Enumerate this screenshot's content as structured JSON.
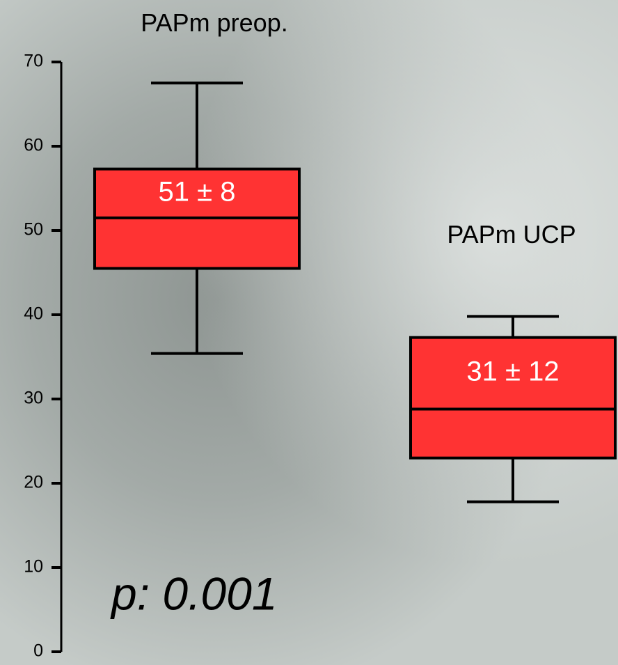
{
  "chart_data": {
    "type": "box",
    "categories": [
      "PAPm preop.",
      "PAPm UCP"
    ],
    "boxes": [
      {
        "whislo": 35.4,
        "q1": 45.5,
        "med": 51.5,
        "q3": 57.3,
        "whishi": 67.5,
        "label": "51 ± 8"
      },
      {
        "whislo": 17.8,
        "q1": 23,
        "med": 28.8,
        "q3": 37.3,
        "whishi": 39.8,
        "label": "31 ± 12"
      }
    ],
    "color": "#ff3333",
    "ylim": [
      0,
      70
    ],
    "yticks": [
      0,
      10,
      20,
      30,
      40,
      50,
      60,
      70
    ],
    "annotation": "p: 0.001"
  }
}
